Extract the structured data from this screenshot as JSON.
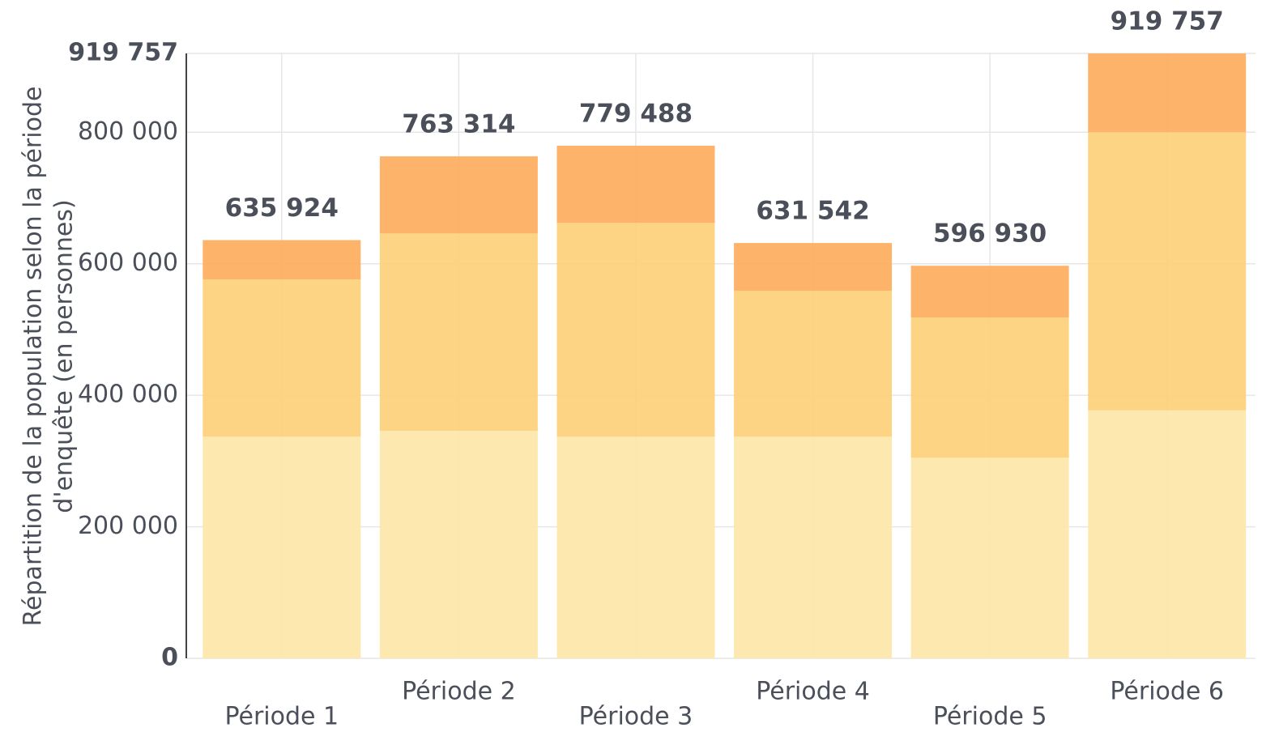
{
  "chart_data": {
    "type": "stacked_bar",
    "ylabel": [
      "Répartition de la population selon la période",
      "d'enquête (en personnes)"
    ],
    "categories": [
      "Période 1",
      "Période 2",
      "Période 3",
      "Période 4",
      "Période 5",
      "Période 6"
    ],
    "series": [
      {
        "color": "#fde7a9",
        "values": [
          337000,
          346000,
          337000,
          337000,
          305000,
          377000
        ]
      },
      {
        "color": "#fdd07a",
        "values": [
          239000,
          300000,
          325000,
          222000,
          213000,
          423000
        ]
      },
      {
        "color": "#fdae5d",
        "values": [
          59924,
          117314,
          117488,
          72542,
          78930,
          119757
        ]
      }
    ],
    "totals": {
      "values": [
        635924,
        763314,
        779488,
        631542,
        596930,
        919757
      ],
      "value_labels": [
        "635 924",
        "763 314",
        "779 488",
        "631 542",
        "596 930",
        "919 757"
      ]
    },
    "ylim": [
      0,
      919757
    ],
    "yticks": [
      0,
      {
        "value": 200000,
        "label": "200 000"
      },
      {
        "value": 400000,
        "label": "400 000"
      },
      {
        "value": 600000,
        "label": "600 000"
      },
      {
        "value": 800000,
        "label": "800 000"
      },
      {
        "value": 919757,
        "label": "919 757"
      }
    ],
    "grid": true
  }
}
